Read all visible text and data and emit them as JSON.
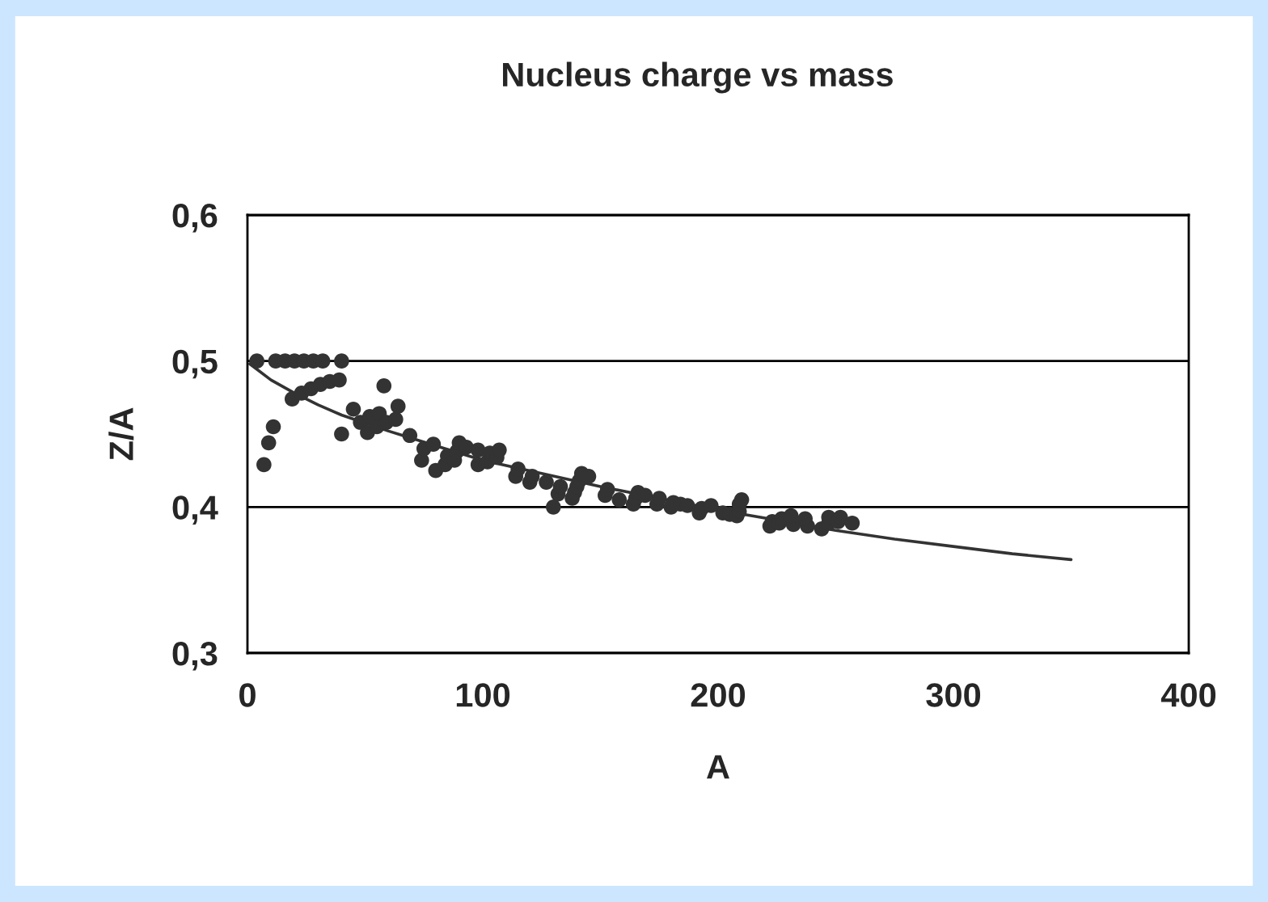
{
  "chart_data": {
    "type": "scatter",
    "title": "Nucleus charge vs mass",
    "xlabel": "A",
    "ylabel": "Z/A",
    "series": [
      {
        "color": "#333333",
        "marker": "circle",
        "x": [
          4,
          7,
          9,
          11,
          12,
          16,
          19,
          20,
          23,
          24,
          27,
          28,
          31,
          32,
          35,
          40,
          39,
          40,
          45,
          48,
          51,
          52,
          55,
          56,
          59,
          58,
          63,
          64,
          69,
          74,
          75,
          80,
          79,
          84,
          85,
          88,
          89,
          90,
          93,
          98,
          98,
          102,
          103,
          106,
          107,
          114,
          115,
          120,
          121,
          130,
          127,
          132,
          133,
          138,
          139,
          140,
          141,
          142,
          145,
          152,
          153,
          158,
          164,
          165,
          166,
          169,
          174,
          175,
          180,
          181,
          184,
          187,
          192,
          193,
          197,
          202,
          205,
          208,
          209,
          209,
          210,
          222,
          223,
          226,
          227,
          232,
          231,
          238,
          237,
          244,
          247,
          247,
          251,
          252,
          257
        ],
        "values": [
          0.5,
          0.429,
          0.444,
          0.455,
          0.5,
          0.5,
          0.474,
          0.5,
          0.478,
          0.5,
          0.481,
          0.5,
          0.484,
          0.5,
          0.486,
          0.45,
          0.487,
          0.5,
          0.467,
          0.458,
          0.451,
          0.462,
          0.455,
          0.464,
          0.458,
          0.483,
          0.46,
          0.469,
          0.449,
          0.432,
          0.44,
          0.425,
          0.443,
          0.429,
          0.435,
          0.432,
          0.438,
          0.444,
          0.441,
          0.429,
          0.439,
          0.431,
          0.437,
          0.434,
          0.439,
          0.421,
          0.426,
          0.417,
          0.421,
          0.4,
          0.417,
          0.409,
          0.414,
          0.406,
          0.41,
          0.414,
          0.418,
          0.423,
          0.421,
          0.408,
          0.412,
          0.405,
          0.402,
          0.406,
          0.41,
          0.408,
          0.402,
          0.406,
          0.4,
          0.403,
          0.402,
          0.401,
          0.396,
          0.399,
          0.401,
          0.396,
          0.395,
          0.394,
          0.397,
          0.402,
          0.405,
          0.387,
          0.39,
          0.389,
          0.392,
          0.388,
          0.394,
          0.387,
          0.392,
          0.385,
          0.389,
          0.393,
          0.39,
          0.393,
          0.389
        ]
      },
      {
        "type": "line",
        "color": "#333333",
        "marker": "none",
        "line_style": "solid",
        "x": [
          1,
          10,
          20,
          30,
          40,
          60,
          80,
          100,
          125,
          150,
          175,
          200,
          225,
          250,
          275,
          300,
          325,
          350
        ],
        "values": [
          0.498,
          0.487,
          0.478,
          0.47,
          0.463,
          0.452,
          0.442,
          0.432,
          0.423,
          0.414,
          0.406,
          0.398,
          0.391,
          0.384,
          0.378,
          0.373,
          0.368,
          0.364
        ]
      }
    ],
    "xlim": [
      0,
      400
    ],
    "xticks": [
      0,
      100,
      200,
      300,
      400
    ],
    "ylim": [
      0.3,
      0.6
    ],
    "yticks": [
      {
        "value": 0.3,
        "label": "0,3"
      },
      {
        "value": 0.4,
        "label": "0,4"
      },
      {
        "value": 0.5,
        "label": "0,5"
      },
      {
        "value": 0.6,
        "label": "0,6"
      }
    ],
    "grid": "y",
    "legend": false
  }
}
